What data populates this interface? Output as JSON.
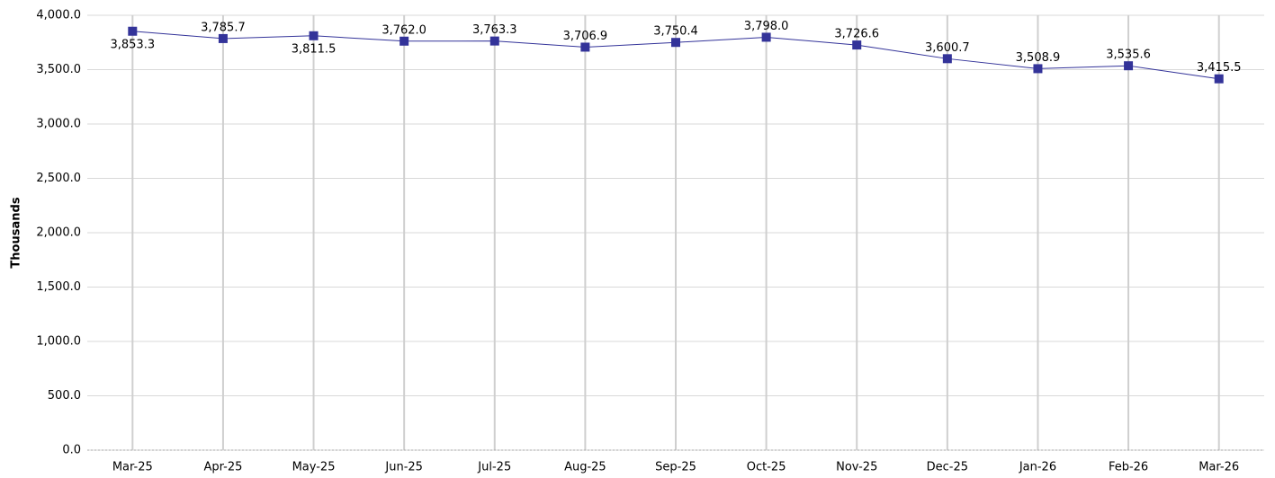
{
  "chart_data": {
    "type": "line",
    "y_label": "Thousands",
    "categories": [
      "Mar-25",
      "Apr-25",
      "May-25",
      "Jun-25",
      "Jul-25",
      "Aug-25",
      "Sep-25",
      "Oct-25",
      "Nov-25",
      "Dec-25",
      "Jan-26",
      "Feb-26",
      "Mar-26"
    ],
    "series": [
      {
        "color": "#333399",
        "values": [
          3853.3,
          3785.7,
          3811.5,
          3762.0,
          3763.3,
          3706.9,
          3750.4,
          3798.0,
          3726.6,
          3600.7,
          3508.9,
          3535.6,
          3415.5
        ],
        "value_labels": [
          "3,853.3",
          "3,785.7",
          "3,811.5",
          "3,762.0",
          "3,763.3",
          "3,706.9",
          "3,750.4",
          "3,798.0",
          "3,726.6",
          "3,600.7",
          "3,508.9",
          "3,535.6",
          "3,415.5"
        ]
      }
    ],
    "ylim": [
      0,
      4000
    ],
    "yticks": [
      {
        "value": 0,
        "label": "0.0"
      },
      {
        "value": 500,
        "label": "500.0"
      },
      {
        "value": 1000,
        "label": "1,000.0"
      },
      {
        "value": 1500,
        "label": "1,500.0"
      },
      {
        "value": 2000,
        "label": "2,000.0"
      },
      {
        "value": 2500,
        "label": "2,500.0"
      },
      {
        "value": 3000,
        "label": "3,000.0"
      },
      {
        "value": 3500,
        "label": "3,500.0"
      },
      {
        "value": 4000,
        "label": "4,000.0"
      }
    ],
    "grid": true
  }
}
